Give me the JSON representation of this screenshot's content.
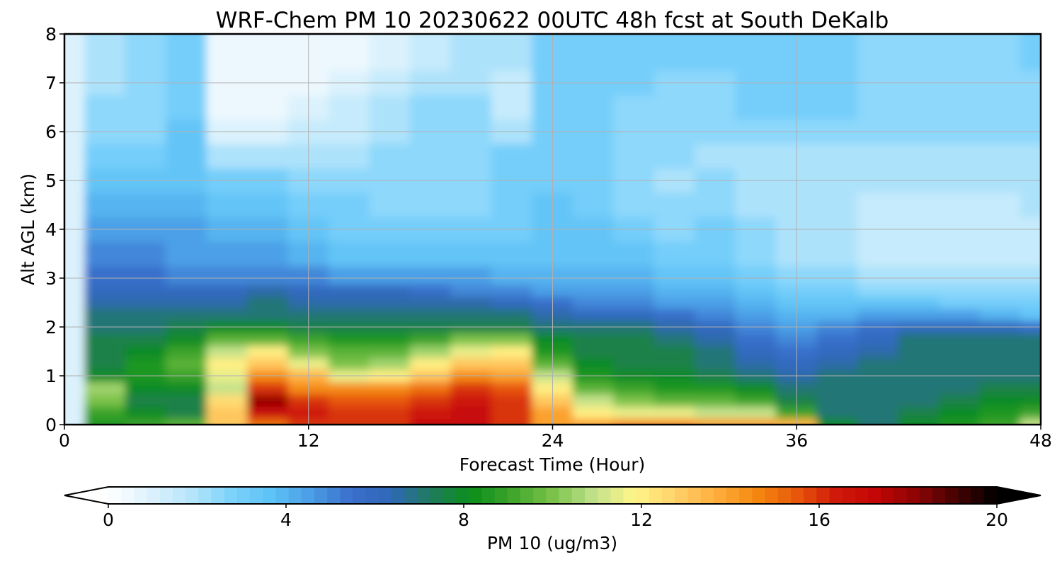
{
  "chart_data": {
    "type": "heatmap",
    "title": "WRF-Chem PM 10  20230622 00UTC 48h fcst at South DeKalb",
    "xlabel": "Forecast Time (Hour)",
    "ylabel": "Alt AGL (km)",
    "xlim": [
      0,
      48
    ],
    "ylim": [
      0,
      8
    ],
    "xticks": [
      0,
      12,
      24,
      36,
      48
    ],
    "yticks": [
      0,
      1,
      2,
      3,
      4,
      5,
      6,
      7,
      8
    ],
    "grid": true,
    "colorbar": {
      "label": "PM 10  (ug/m3)",
      "range": [
        0,
        20
      ],
      "ticks": [
        0,
        4,
        8,
        12,
        16,
        20
      ],
      "extend": "both",
      "placement": "bottom",
      "colors": [
        "#ffffff",
        "#dff3fd",
        "#b8e6fb",
        "#7fd3fb",
        "#5ec3f6",
        "#4a9ee6",
        "#3a6fcc",
        "#2f68b8",
        "#1f7c5a",
        "#0b8f1b",
        "#3fa52c",
        "#7bc24a",
        "#bfe08a",
        "#fff68a",
        "#ffd36b",
        "#ffb040",
        "#f58a10",
        "#e85a0a",
        "#cf1a0a",
        "#c40606",
        "#8c0404",
        "#450202",
        "#000000"
      ]
    },
    "x": [
      0,
      2,
      4,
      6,
      8,
      10,
      12,
      14,
      16,
      18,
      20,
      22,
      24,
      26,
      28,
      30,
      32,
      34,
      36,
      38,
      40,
      42,
      44,
      46,
      48
    ],
    "y": [
      0,
      0.25,
      0.5,
      0.75,
      1,
      1.25,
      1.5,
      1.75,
      2,
      2.25,
      2.5,
      2.75,
      3,
      3.5,
      4,
      4.5,
      5,
      5.5,
      6,
      6.5,
      7,
      7.5,
      8
    ],
    "values": [
      [
        1.0,
        8.5,
        9.0,
        9.5,
        13,
        15,
        16,
        16,
        16,
        17,
        17,
        16,
        14,
        14,
        14.5,
        14.5,
        14,
        14,
        13.5,
        8,
        7,
        8,
        8.5,
        9,
        11
      ],
      [
        1.0,
        9.0,
        8.0,
        7.5,
        13,
        17,
        16.5,
        16,
        16,
        16.5,
        17,
        16,
        14,
        12,
        11.5,
        11.5,
        11,
        11,
        9,
        7,
        7,
        7.5,
        8,
        8.5,
        9
      ],
      [
        1.0,
        10,
        7.5,
        7.5,
        12.5,
        18,
        16,
        15.5,
        15.5,
        16,
        16.5,
        16,
        13,
        11,
        10,
        9.5,
        9.5,
        9,
        7.5,
        7,
        7,
        7,
        7.5,
        8,
        8
      ],
      [
        1.0,
        10.5,
        8.0,
        8.0,
        11,
        16,
        14.5,
        14.5,
        14.5,
        15,
        16,
        15.5,
        12,
        9.5,
        9,
        8.5,
        8.5,
        8,
        7,
        7,
        7,
        7,
        7,
        7.5,
        7.5
      ],
      [
        1.0,
        8.0,
        8.5,
        9.0,
        11.5,
        14.5,
        13.5,
        11.5,
        12,
        13,
        14.5,
        14,
        11,
        8.5,
        8,
        8,
        7.5,
        7,
        6.5,
        7,
        7,
        7,
        7,
        7,
        7
      ],
      [
        1.0,
        7.5,
        8.5,
        9.5,
        12,
        13,
        11.5,
        10,
        10.5,
        12,
        13,
        13,
        9.5,
        8,
        7.5,
        7.5,
        7,
        6.5,
        6,
        6.5,
        7,
        7,
        7,
        7,
        7
      ],
      [
        1.0,
        7.5,
        8.0,
        9.0,
        11,
        12,
        10,
        9.5,
        9.5,
        10.5,
        11.5,
        12,
        8.5,
        7.5,
        7.5,
        7.5,
        7,
        6,
        5.5,
        6,
        6.5,
        7,
        7,
        7,
        7
      ],
      [
        1.0,
        7.5,
        7.5,
        8.0,
        9.5,
        9.5,
        9,
        8.5,
        8.5,
        9,
        10,
        10,
        8,
        7.5,
        7.5,
        7,
        6.5,
        5.5,
        5,
        5.5,
        6,
        7,
        7,
        7,
        7
      ],
      [
        1.0,
        7.0,
        7.0,
        7.5,
        8.0,
        8.0,
        7.5,
        7.5,
        7.5,
        7.5,
        7.5,
        7.5,
        7,
        7,
        7,
        6.5,
        6,
        5,
        4.5,
        5,
        5.5,
        6,
        6,
        6,
        5.5
      ],
      [
        1.0,
        7.0,
        7.0,
        7.0,
        7.0,
        7.0,
        7.0,
        7.0,
        7.0,
        7.0,
        7.0,
        7.0,
        6.5,
        6,
        6,
        5.5,
        5,
        4.5,
        4,
        4,
        4.5,
        4.5,
        4.5,
        4,
        3.5
      ],
      [
        1.0,
        6.5,
        6.5,
        6.5,
        6.5,
        7.0,
        6.5,
        6.5,
        6.5,
        6.5,
        6.5,
        6.0,
        5.5,
        5,
        5,
        4.5,
        4.5,
        4,
        3.5,
        3.5,
        3.5,
        3.5,
        3,
        3,
        3
      ],
      [
        1.0,
        6.0,
        6.0,
        6.0,
        6.0,
        6.5,
        6.0,
        6.0,
        6.0,
        5.5,
        5.0,
        5.0,
        4.5,
        4.5,
        4.5,
        4,
        4,
        3.5,
        3,
        3,
        2.5,
        2.5,
        2.5,
        2.5,
        2.5
      ],
      [
        1.0,
        5.5,
        5.5,
        5.0,
        5.0,
        5.0,
        5.0,
        4.5,
        4.5,
        4.5,
        4.5,
        4.0,
        4.0,
        4,
        4,
        3.5,
        3.5,
        3,
        2.5,
        2.5,
        2,
        2,
        2,
        2,
        2
      ],
      [
        1.0,
        5.0,
        5.0,
        4.5,
        4.5,
        4.5,
        4.0,
        3.5,
        3.5,
        3.5,
        3.5,
        3.5,
        3.5,
        3.5,
        3.5,
        3,
        3,
        2.5,
        2,
        2,
        1.5,
        1.5,
        1.5,
        1.5,
        1.5
      ],
      [
        1.0,
        4.5,
        4.5,
        4.5,
        4.0,
        4.0,
        3.5,
        3.0,
        3.0,
        3.0,
        3.0,
        3.0,
        3.5,
        3.5,
        3,
        2.5,
        3,
        2.5,
        2,
        2,
        1.5,
        1.5,
        1.5,
        1.5,
        1.5
      ],
      [
        1.0,
        4.0,
        4.0,
        4.0,
        3.5,
        3.5,
        3.0,
        3.0,
        2.5,
        2.5,
        2.5,
        3.0,
        3.5,
        3,
        2.5,
        2.5,
        2.5,
        2,
        2,
        2,
        1.5,
        1.5,
        1.5,
        1.5,
        2
      ],
      [
        1.0,
        3.5,
        3.5,
        3.5,
        3.0,
        3.0,
        2.5,
        2.5,
        2.5,
        2.5,
        2.5,
        3.0,
        3.0,
        3,
        2.5,
        2,
        2.5,
        2,
        2,
        2,
        2,
        2,
        2,
        2,
        2
      ],
      [
        1.0,
        3.0,
        3.0,
        3.5,
        2.0,
        2.0,
        2.0,
        2.0,
        2.5,
        2.5,
        2.5,
        3.0,
        3.0,
        3,
        2.5,
        2.5,
        2,
        2,
        2,
        2,
        2,
        2,
        2,
        2,
        2
      ],
      [
        1.0,
        2.5,
        2.5,
        3.5,
        1.0,
        1.0,
        1.5,
        1.5,
        2.0,
        2.5,
        2.5,
        2.0,
        3.0,
        3,
        2.5,
        2.5,
        2.5,
        2.5,
        2.5,
        2.5,
        2.5,
        2.5,
        2.5,
        2.5,
        2.5
      ],
      [
        1.0,
        2.5,
        2.5,
        3.0,
        0.5,
        0.5,
        1.0,
        1.5,
        2.0,
        2.5,
        2.5,
        1.5,
        3.0,
        3,
        2.5,
        2.5,
        2.5,
        3,
        3,
        3,
        2.5,
        2.5,
        2.5,
        2.5,
        2.5
      ],
      [
        1.0,
        2.0,
        2.5,
        3.0,
        0.5,
        0.5,
        0.5,
        1.0,
        1.5,
        2.0,
        2.0,
        1.5,
        3.0,
        3,
        3,
        2.5,
        2.5,
        3,
        3,
        3,
        2.5,
        2.5,
        2.5,
        2.5,
        2.5
      ],
      [
        1.0,
        2.0,
        2.5,
        3.0,
        0.5,
        0.5,
        0.5,
        0.5,
        1.0,
        1.5,
        2.0,
        2.0,
        3.0,
        3,
        3,
        3,
        3,
        3,
        3,
        3,
        2.5,
        2.5,
        2.5,
        2.5,
        3
      ],
      [
        1.0,
        2.0,
        2.5,
        3.0,
        0.5,
        0.5,
        0.5,
        0.5,
        1.0,
        1.5,
        2.0,
        2.0,
        3.0,
        3,
        3,
        3,
        3,
        3,
        3,
        3,
        2.5,
        2.5,
        2.5,
        2.5,
        3
      ]
    ]
  }
}
